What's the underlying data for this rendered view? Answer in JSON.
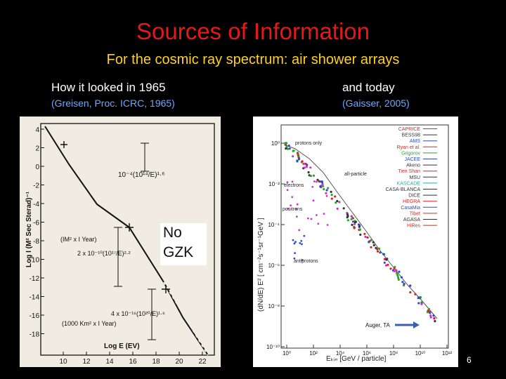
{
  "slide": {
    "title": "Sources of Information",
    "subtitle": "For the cosmic ray spectrum: air shower arrays",
    "left_label": "How it looked in 1965",
    "left_citation": "(Greisen, Proc. ICRC, 1965)",
    "right_label": "and today",
    "right_citation": "(Gaisser, 2005)",
    "callout": [
      "No",
      "GZK"
    ],
    "page_number": "6",
    "colors": {
      "title": "#e41a1a",
      "subtitle": "#ffd21f",
      "citation": "#6aa9ff",
      "arrow": "#3a5fb0"
    }
  },
  "left_plot": {
    "y_ticks": [
      "4",
      "2",
      "0",
      "-2",
      "-4",
      "-6",
      "-8",
      "-10",
      "-12",
      "-14",
      "-16",
      "-18"
    ],
    "x_ticks": [
      "10",
      "12",
      "14",
      "16",
      "18",
      "20",
      "22"
    ],
    "ylabel": "Log I (M² Sec Sterad)⁻¹",
    "xlabel": "Log E (EV)",
    "annotations": {
      "a1": "10⁻⁴(10¹⁴/E)¹·⁶",
      "a2": "(IM² x I Year)",
      "a3": "2 x 10⁻¹⁰(10¹⁷/E)²·²",
      "a4": "4 x 10⁻¹⁶(10²⁰/E)¹·⁶",
      "a5": "(1000 Km² x I Year)"
    }
  },
  "right_plot": {
    "y_ticks": [
      "10⁰",
      "10⁻²",
      "10⁻⁴",
      "10⁻⁶",
      "10⁻⁸",
      "10⁻¹⁰"
    ],
    "x_ticks": [
      "10⁰",
      "10²",
      "10⁴",
      "10⁶",
      "10⁸",
      "10¹⁰",
      "10¹²"
    ],
    "ylabel": "(dN/dE) E² [ cm⁻²s⁻¹sr⁻¹GeV ]",
    "xlabel": "Eₖᵢₙ [GeV / particle]",
    "annotations": {
      "protons_only": "protons only",
      "all_particle": "all-particle",
      "electrons": "electrons",
      "positrons": "positrons",
      "antiprotons": "antiprotons",
      "auger_ta": "Auger, TA"
    },
    "legend": [
      {
        "name": "CAPRICE",
        "color": "#d22"
      },
      {
        "name": "BESS98",
        "color": "#333"
      },
      {
        "name": "AMS",
        "color": "#2a4ad0"
      },
      {
        "name": "Ryan et al.",
        "color": "#d22"
      },
      {
        "name": "Grigorov",
        "color": "#2a2"
      },
      {
        "name": "JACEE",
        "color": "#2a4ad0"
      },
      {
        "name": "Akeno",
        "color": "#333"
      },
      {
        "name": "Tien Shan",
        "color": "#d22"
      },
      {
        "name": "MSU",
        "color": "#333"
      },
      {
        "name": "KASCADE",
        "color": "#2aa"
      },
      {
        "name": "CASA-BLANCA",
        "color": "#333"
      },
      {
        "name": "DICE",
        "color": "#333"
      },
      {
        "name": "HEGRA",
        "color": "#d22"
      },
      {
        "name": "CasaMia",
        "color": "#2a4ad0"
      },
      {
        "name": "Tibet",
        "color": "#d22"
      },
      {
        "name": "AGASA",
        "color": "#333"
      },
      {
        "name": "HiRes",
        "color": "#d22"
      }
    ]
  }
}
